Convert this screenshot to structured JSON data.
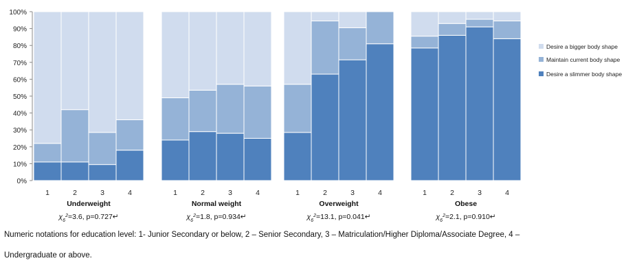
{
  "chart_data": {
    "type": "bar",
    "stacked": true,
    "ylim": [
      0,
      100
    ],
    "yticks": [
      "0%",
      "10%",
      "20%",
      "30%",
      "40%",
      "50%",
      "60%",
      "70%",
      "80%",
      "90%",
      "100%"
    ],
    "categories": [
      "1",
      "2",
      "3",
      "4"
    ],
    "legend_position": "right",
    "series_styles": [
      {
        "name": "Desire a slimmer body shape",
        "color": "#4f81bd"
      },
      {
        "name": "Maintain current body shape",
        "color": "#95b3d7"
      },
      {
        "name": "Desire a bigger body shape",
        "color": "#d0dcee"
      }
    ],
    "legend_order": [
      "Desire a bigger body shape",
      "Maintain current body shape",
      "Desire a slimmer body shape"
    ],
    "panels": [
      {
        "title": "Underweight",
        "stat_label": "χ",
        "stat_sub": "6",
        "stat_sup": "2",
        "stat_text": "=3.6, p=0.727↵",
        "series": [
          {
            "name": "Desire a slimmer body shape",
            "values": [
              11,
              11,
              9.5,
              18
            ]
          },
          {
            "name": "Maintain current body shape",
            "values": [
              11,
              31,
              19,
              18
            ]
          },
          {
            "name": "Desire a bigger body shape",
            "values": [
              78,
              58,
              71.5,
              64
            ]
          }
        ]
      },
      {
        "title": "Normal weight",
        "stat_label": "χ",
        "stat_sub": "6",
        "stat_sup": "2",
        "stat_text": "=1.8, p=0.934↵",
        "series": [
          {
            "name": "Desire a slimmer body shape",
            "values": [
              24,
              29,
              28,
              25
            ]
          },
          {
            "name": "Maintain current body shape",
            "values": [
              25,
              24.5,
              29,
              31
            ]
          },
          {
            "name": "Desire a bigger body shape",
            "values": [
              51,
              46.5,
              43,
              44
            ]
          }
        ]
      },
      {
        "title": "Overweight",
        "stat_label": "χ",
        "stat_sub": "6",
        "stat_sup": "2",
        "stat_text": "=13.1, p=0.041↵",
        "series": [
          {
            "name": "Desire a slimmer body shape",
            "values": [
              28.5,
              63,
              71.5,
              81
            ]
          },
          {
            "name": "Maintain current body shape",
            "values": [
              28.5,
              31.5,
              19,
              19
            ]
          },
          {
            "name": "Desire a bigger body shape",
            "values": [
              43,
              5.5,
              9.5,
              0
            ]
          }
        ]
      },
      {
        "title": "Obese",
        "stat_label": "χ",
        "stat_sub": "6",
        "stat_sup": "2",
        "stat_text": "=2.1, p=0.910↵",
        "series": [
          {
            "name": "Desire a slimmer body shape",
            "values": [
              78.5,
              86,
              91,
              84
            ]
          },
          {
            "name": "Maintain current body shape",
            "values": [
              7,
              7,
              4.5,
              10.5
            ]
          },
          {
            "name": "Desire a bigger body shape",
            "values": [
              14.5,
              7,
              4.5,
              5.5
            ]
          }
        ]
      }
    ]
  },
  "caption": {
    "line1": "Numeric notations for education level: 1- Junior Secondary or below, 2 – Senior Secondary, 3 – Matriculation/Higher Diploma/Associate Degree, 4 –",
    "line2": "Undergraduate or above."
  }
}
